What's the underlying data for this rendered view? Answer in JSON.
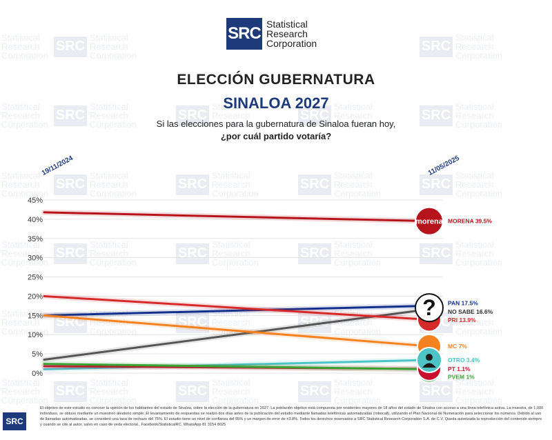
{
  "brand": {
    "logo_mark": "SRC",
    "name_line1": "Statistical",
    "name_line2": "Research",
    "name_line3": "Corporation"
  },
  "header": {
    "title": "ELECCIÓN GUBERNATURA",
    "subtitle": "SINALOA 2027",
    "question_line1": "Si las elecciones para la gubernatura de Sinaloa fueran hoy,",
    "question_line2": "¿por cuál partido votaría?"
  },
  "dates": {
    "start": "19/11/2024",
    "end": "11/05/2025"
  },
  "chart_data": {
    "type": "line",
    "x": [
      "19/11/2024",
      "11/05/2025"
    ],
    "ylim": [
      0,
      45
    ],
    "yticks": [
      "0%",
      "5%",
      "10%",
      "15%",
      "20%",
      "25%",
      "30%",
      "35%",
      "40%",
      "45%"
    ],
    "grid": true,
    "series": [
      {
        "name": "MORENA",
        "label": "MORENA 39.5%",
        "values": [
          41.8,
          39.5
        ],
        "color": "#b5141c",
        "icon": "morena-logo-icon",
        "icon_text": "morena"
      },
      {
        "name": "PAN",
        "label": "PAN 17.5%",
        "values": [
          15.0,
          17.5
        ],
        "color": "#12308a",
        "icon": "pan-logo-icon"
      },
      {
        "name": "NO SABE",
        "label": "NO SABE 16.6%",
        "values": [
          3.5,
          16.6
        ],
        "color": "#555555",
        "icon": "question-mark-icon"
      },
      {
        "name": "PRI",
        "label": "PRI 13.9%",
        "values": [
          20.0,
          13.9
        ],
        "color": "#d42a2a",
        "icon": "pri-logo-icon"
      },
      {
        "name": "MC",
        "label": "MC 7%",
        "values": [
          15.0,
          7.0
        ],
        "color": "#f58220",
        "icon": "mc-logo-icon"
      },
      {
        "name": "OTRO",
        "label": "OTRO 3.4%",
        "values": [
          1.0,
          3.4
        ],
        "color": "#4ec3c5",
        "icon": "person-icon"
      },
      {
        "name": "PT",
        "label": "PT 1.1%",
        "values": [
          1.8,
          1.1
        ],
        "color": "#c8102e",
        "icon": "pt-logo-icon"
      },
      {
        "name": "PVEM",
        "label": "PVEM 1%",
        "values": [
          2.4,
          1.0
        ],
        "color": "#3aa335",
        "icon": "pvem-logo-icon"
      }
    ]
  },
  "footer": {
    "text": "El objetivo de este estudio es conocer la opinión de los habitantes del estado de Sinaloa, sobre la elección de la gubernatura en 2027. La población objetivo está compuesta por residentes mayores de 18 años del estado de Sinaloa con acceso a una línea telefónica activa. La muestra, de 1,000 individuos, se obtuvo mediante un muestreo aleatorio simple. El levantamiento de respuestas se realizó dos días antes de la publicación del estudio mediante llamadas telefónicas automatizadas (robocall), utilizando el Plan Nacional de Numeración para seleccionar los números. Debido al uso de llamadas automatizadas, se consideró una tasa de rechazo del 75%. El estudio tiene un nivel de confianza del 95% y un margen de error de ±3.8%. Todos los derechos reservados a SRC Statistical Research Corporation S.A. de C.V. Queda autorizada la reproducción del contenido siempre y cuando se cite al autor, salvo en caso de veda electoral., Facebook/StatisticalRC, WhatsApp 81 3154 8025"
  }
}
